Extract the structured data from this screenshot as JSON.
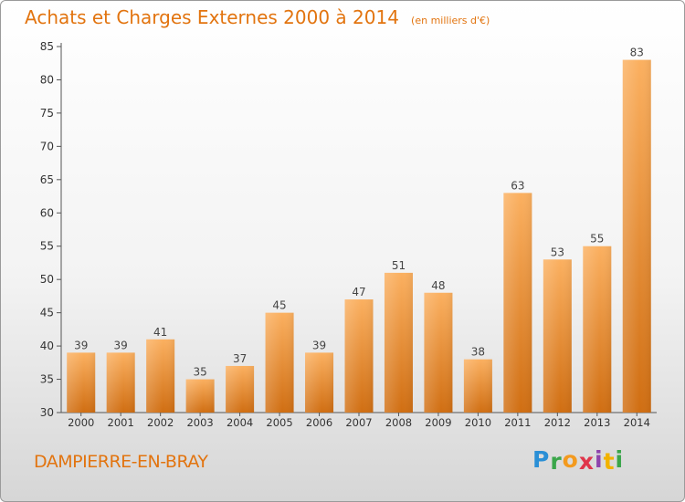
{
  "header": {
    "title": "Achats et Charges Externes 2000 à 2014",
    "subtitle": "(en milliers d'€)"
  },
  "footer": {
    "city": "DAMPIERRE-EN-BRAY",
    "brand": [
      "P",
      "r",
      "o",
      "x",
      "i",
      "t",
      "i"
    ],
    "brand_colors": [
      "#2a8fd6",
      "#3aa64a",
      "#f39a1e",
      "#e0354b",
      "#8e44ad",
      "#f2b200",
      "#3aa64a"
    ]
  },
  "colors": {
    "bar_light": "#fbb060",
    "bar_dark": "#d06e12",
    "accent": "#e2740f"
  },
  "chart_data": {
    "type": "bar",
    "categories": [
      "2000",
      "2001",
      "2002",
      "2003",
      "2004",
      "2005",
      "2006",
      "2007",
      "2008",
      "2009",
      "2010",
      "2011",
      "2012",
      "2013",
      "2014"
    ],
    "values": [
      39,
      39,
      41,
      35,
      37,
      45,
      39,
      47,
      51,
      48,
      38,
      63,
      53,
      55,
      83
    ],
    "title": "Achats et Charges Externes 2000 à 2014",
    "subtitle": "(en milliers d'€)",
    "xlabel": "",
    "ylabel": "",
    "ylim": [
      30,
      85
    ],
    "yticks": [
      30,
      35,
      40,
      45,
      50,
      55,
      60,
      65,
      70,
      75,
      80,
      85
    ],
    "grid": false,
    "legend": "none"
  }
}
